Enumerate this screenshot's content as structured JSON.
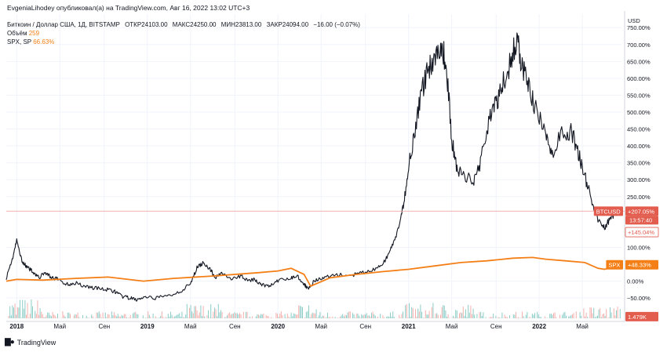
{
  "header": {
    "publisher": "EvgeniaLihodey опубликовал(а) на TradingView.com, Авг 16, 2022 13:02 UTC+3",
    "symbol_line": "Биткоин / Доллар США, 1Д, BITSTAMP",
    "ohlc": [
      "ОТКР24103.00",
      "МАКС24250.00",
      "МИН23813.00",
      "ЗАКР24094.00",
      "−16.00 (−0.07%)"
    ],
    "volume_label": "Объём",
    "volume_value": "259",
    "spx_label": "SPX, SP",
    "spx_value": "66.63%"
  },
  "footer": {
    "logo_text": "TradingView",
    "logo_icon": "tradingview-logo-icon"
  },
  "colors": {
    "btc": "#131722",
    "spx": "#f57f17",
    "btc_badge": "#e25d4e",
    "vol_up": "#7fc8c2",
    "vol_down": "#f2a7a3",
    "grid": "#f0f3fa",
    "axis_text": "#131722"
  },
  "chart_data": {
    "type": "line",
    "title": "Биткоин / Доллар США, 1Д, BITSTAMP",
    "currency_label": "USD",
    "y_unit": "%",
    "ylim": [
      -110,
      790
    ],
    "y_ticks": [
      750,
      700,
      650,
      600,
      550,
      500,
      450,
      400,
      350,
      300,
      250,
      100,
      0,
      -50
    ],
    "y_tick_labels": [
      "750.00%",
      "700.00%",
      "650.00%",
      "600.00%",
      "550.00%",
      "500.00%",
      "450.00%",
      "400.00%",
      "350.00%",
      "300.00%",
      "250.00%",
      "100.00%",
      "0.00%",
      "−50.00%"
    ],
    "x_range": [
      2017.92,
      2022.63
    ],
    "x_ticks": [
      {
        "x": 2018.0,
        "label": "2018",
        "bold": true
      },
      {
        "x": 2018.33,
        "label": "Май",
        "bold": false
      },
      {
        "x": 2018.67,
        "label": "Сен",
        "bold": false
      },
      {
        "x": 2019.0,
        "label": "2019",
        "bold": true
      },
      {
        "x": 2019.33,
        "label": "Май",
        "bold": false
      },
      {
        "x": 2019.67,
        "label": "Сен",
        "bold": false
      },
      {
        "x": 2020.0,
        "label": "2020",
        "bold": true
      },
      {
        "x": 2020.33,
        "label": "Май",
        "bold": false
      },
      {
        "x": 2020.67,
        "label": "Сен",
        "bold": false
      },
      {
        "x": 2021.0,
        "label": "2021",
        "bold": true
      },
      {
        "x": 2021.33,
        "label": "Май",
        "bold": false
      },
      {
        "x": 2021.67,
        "label": "Сен",
        "bold": false
      },
      {
        "x": 2022.0,
        "label": "2022",
        "bold": true
      },
      {
        "x": 2022.33,
        "label": "Май",
        "bold": false
      }
    ],
    "series": [
      {
        "name": "BTCUSD",
        "x": [
          2017.92,
          2017.97,
          2018.0,
          2018.04,
          2018.08,
          2018.12,
          2018.17,
          2018.22,
          2018.27,
          2018.32,
          2018.38,
          2018.45,
          2018.52,
          2018.6,
          2018.68,
          2018.75,
          2018.8,
          2018.86,
          2018.92,
          2018.97,
          2019.05,
          2019.15,
          2019.25,
          2019.33,
          2019.38,
          2019.43,
          2019.48,
          2019.52,
          2019.57,
          2019.65,
          2019.72,
          2019.78,
          2019.82,
          2019.87,
          2019.93,
          2020.0,
          2020.1,
          2020.15,
          2020.2,
          2020.23,
          2020.28,
          2020.35,
          2020.45,
          2020.55,
          2020.65,
          2020.75,
          2020.82,
          2020.87,
          2020.92,
          2020.96,
          2021.0,
          2021.05,
          2021.1,
          2021.15,
          2021.2,
          2021.25,
          2021.29,
          2021.33,
          2021.37,
          2021.42,
          2021.5,
          2021.55,
          2021.62,
          2021.67,
          2021.72,
          2021.78,
          2021.83,
          2021.87,
          2021.92,
          2021.98,
          2022.05,
          2022.1,
          2022.18,
          2022.25,
          2022.3,
          2022.35,
          2022.4,
          2022.45,
          2022.5,
          2022.53,
          2022.57,
          2022.62
        ],
        "values": [
          10,
          70,
          120,
          60,
          40,
          30,
          10,
          25,
          10,
          5,
          -10,
          -5,
          -15,
          -20,
          -25,
          -30,
          -45,
          -50,
          -55,
          -50,
          -50,
          -45,
          -30,
          -10,
          40,
          55,
          35,
          10,
          25,
          5,
          15,
          0,
          5,
          -10,
          -15,
          0,
          10,
          15,
          -10,
          -20,
          0,
          10,
          20,
          15,
          25,
          35,
          60,
          100,
          150,
          220,
          340,
          450,
          560,
          630,
          660,
          700,
          640,
          420,
          330,
          310,
          300,
          350,
          490,
          520,
          580,
          650,
          710,
          640,
          570,
          500,
          430,
          380,
          440,
          440,
          380,
          310,
          240,
          180,
          160,
          175,
          200,
          207.05
        ]
      },
      {
        "name": "SPX",
        "x": [
          2017.92,
          2018.0,
          2018.2,
          2018.45,
          2018.7,
          2018.97,
          2019.2,
          2019.5,
          2019.85,
          2020.0,
          2020.1,
          2020.2,
          2020.25,
          2020.4,
          2020.6,
          2020.8,
          2021.0,
          2021.2,
          2021.4,
          2021.6,
          2021.8,
          2021.95,
          2022.05,
          2022.2,
          2022.35,
          2022.45,
          2022.5,
          2022.57,
          2022.62
        ],
        "values": [
          0,
          5,
          3,
          8,
          12,
          0,
          8,
          15,
          25,
          30,
          38,
          20,
          -15,
          10,
          20,
          28,
          35,
          45,
          55,
          60,
          68,
          70,
          65,
          60,
          55,
          38,
          35,
          42,
          48.33
        ]
      }
    ],
    "volume": {
      "label": "Объём",
      "max": 1.6,
      "unit": "K",
      "up_color": "#7fc8c2",
      "down_color": "#f2a7a3"
    },
    "badges": [
      {
        "label": "BTCUSD",
        "value": "+207.05%",
        "sub": "13:57:40",
        "y": 207.05,
        "color": "#e25d4e"
      },
      {
        "label": "",
        "value": "+145.04%",
        "sub": "",
        "y": 145.04,
        "color": "#ffffff"
      },
      {
        "label": "SPX",
        "value": "+48.33%",
        "sub": "",
        "y": 48.33,
        "color": "#f57f17"
      },
      {
        "label": "",
        "value": "1.479K",
        "sub": "",
        "y": -105,
        "color": "#e25d4e"
      }
    ]
  }
}
